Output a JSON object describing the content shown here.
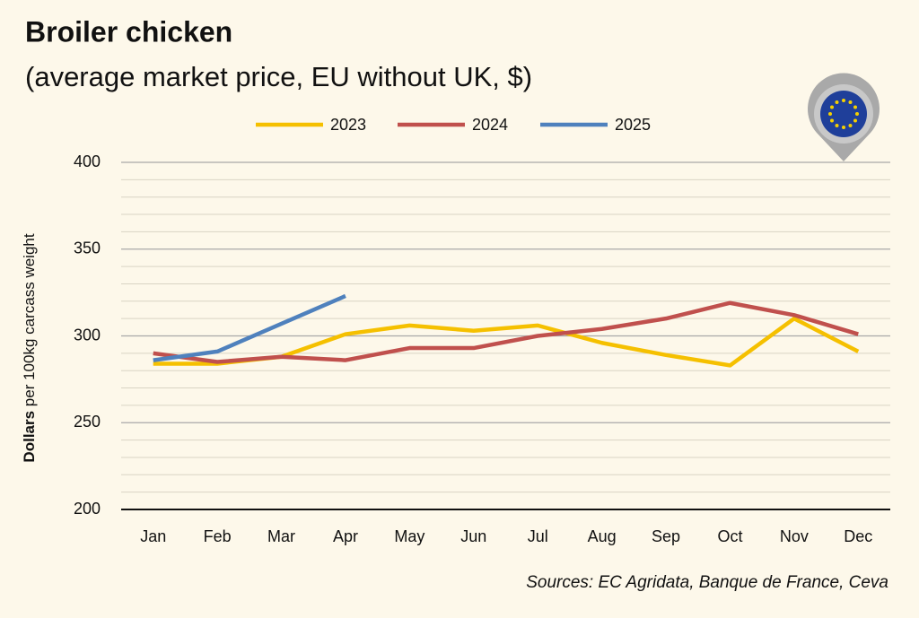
{
  "chart_data": {
    "type": "line",
    "title": "Broiler chicken",
    "subtitle": "(average market price, EU without UK, $)",
    "y_label_bold": "Dollars",
    "y_label_rest": " per 100kg carcass weight",
    "source": "Sources: EC Agridata, Banque de France, Ceva",
    "categories": [
      "Jan",
      "Feb",
      "Mar",
      "Apr",
      "May",
      "Jun",
      "Jul",
      "Aug",
      "Sep",
      "Oct",
      "Nov",
      "Dec"
    ],
    "series": [
      {
        "name": "2023",
        "color": "#f5c000",
        "values": [
          284,
          284,
          288,
          301,
          306,
          303,
          306,
          296,
          289,
          283,
          310,
          291
        ]
      },
      {
        "name": "2024",
        "color": "#c0504d",
        "values": [
          290,
          285,
          288,
          286,
          293,
          293,
          300,
          304,
          310,
          319,
          312,
          301
        ]
      },
      {
        "name": "2025",
        "color": "#4f81bd",
        "values": [
          286,
          291,
          307,
          323,
          null,
          null,
          null,
          null,
          null,
          null,
          null,
          null
        ]
      }
    ],
    "ylim": [
      200,
      400
    ],
    "yticks": [
      200,
      250,
      300,
      350,
      400
    ],
    "minor_yticks": [
      210,
      220,
      230,
      240,
      260,
      270,
      280,
      290,
      310,
      320,
      330,
      340,
      360,
      370,
      380,
      390
    ],
    "grid": true,
    "legend": "top"
  }
}
